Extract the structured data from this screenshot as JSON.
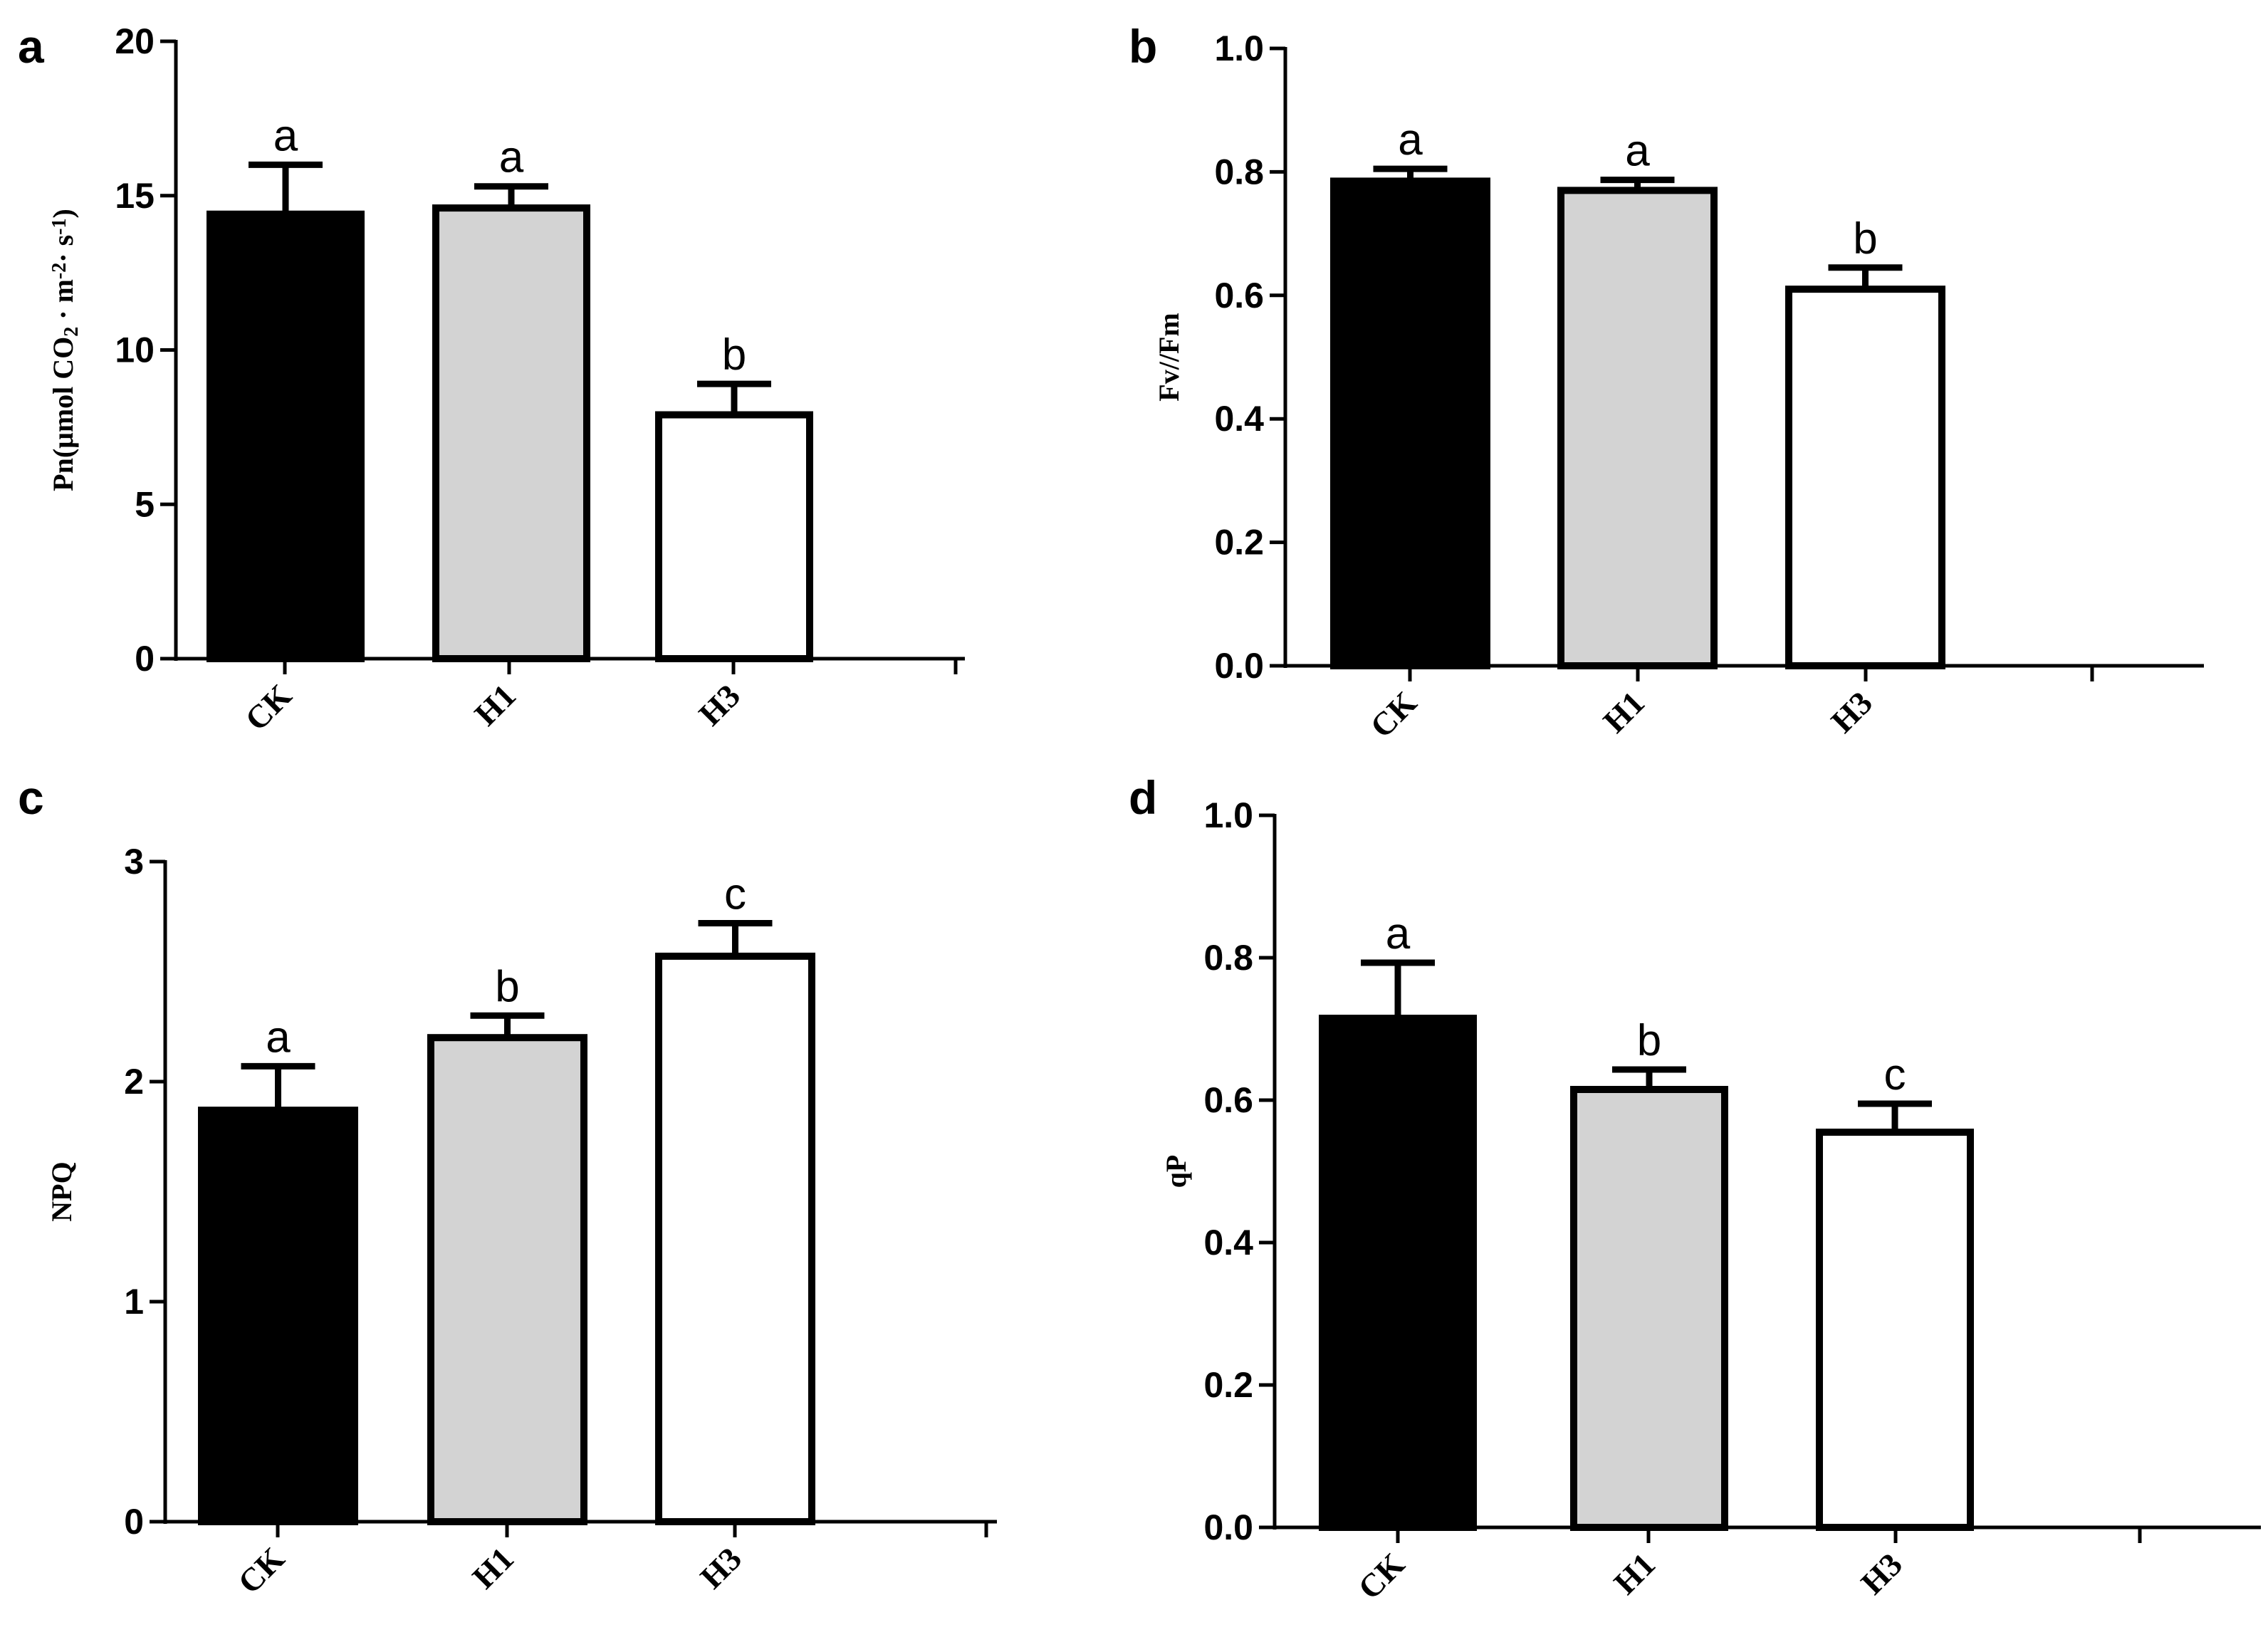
{
  "colors": {
    "CK": "#000000",
    "H1": "#d3d3d3",
    "H3": "#ffffff",
    "axis": "#000000"
  },
  "chart_data": [
    {
      "panel": "a",
      "type": "bar",
      "categories": [
        "CK",
        "H1",
        "H3"
      ],
      "values": [
        14.4,
        14.6,
        7.9
      ],
      "errors": [
        1.6,
        0.7,
        1.0
      ],
      "significance": [
        "a",
        "a",
        "b"
      ],
      "ylabel": "Pn(μmol CO2 · m-2· s-1)",
      "ylabel_parts": [
        "Pn(μmol CO",
        "2",
        " · m",
        "-2",
        "· s",
        "-1",
        ")"
      ],
      "ylim": [
        0,
        20
      ],
      "yticks": [
        "0",
        "5",
        "10",
        "15",
        "20"
      ],
      "ytick_values": [
        0,
        5,
        10,
        15,
        20
      ],
      "xlabel": ""
    },
    {
      "panel": "b",
      "type": "bar",
      "categories": [
        "CK",
        "H1",
        "H3"
      ],
      "values": [
        0.785,
        0.77,
        0.61
      ],
      "errors": [
        0.02,
        0.017,
        0.035
      ],
      "significance": [
        "a",
        "a",
        "b"
      ],
      "ylabel": "Fv//Fm",
      "ylim": [
        0,
        1.0
      ],
      "yticks": [
        "0.0",
        "0.2",
        "0.4",
        "0.6",
        "0.8",
        "1.0"
      ],
      "ytick_values": [
        0,
        0.2,
        0.4,
        0.6,
        0.8,
        1.0
      ],
      "xlabel": ""
    },
    {
      "panel": "c",
      "type": "bar",
      "categories": [
        "CK",
        "H1",
        "H3"
      ],
      "values": [
        1.87,
        2.2,
        2.57
      ],
      "errors": [
        0.2,
        0.1,
        0.15
      ],
      "significance": [
        "a",
        "b",
        "c"
      ],
      "ylabel": "NPQ",
      "ylim": [
        0,
        3
      ],
      "yticks": [
        "0",
        "1",
        "2",
        "3"
      ],
      "ytick_values": [
        0,
        1,
        2,
        3
      ],
      "xlabel": ""
    },
    {
      "panel": "d",
      "type": "bar",
      "categories": [
        "CK",
        "H1",
        "H3"
      ],
      "values": [
        0.715,
        0.615,
        0.555
      ],
      "errors": [
        0.078,
        0.028,
        0.04
      ],
      "significance": [
        "a",
        "b",
        "c"
      ],
      "ylabel": "qP",
      "ylim": [
        0,
        1.0
      ],
      "yticks": [
        "0.0",
        "0.2",
        "0.4",
        "0.6",
        "0.8",
        "1.0"
      ],
      "ytick_values": [
        0,
        0.2,
        0.4,
        0.6,
        0.8,
        1.0
      ],
      "xlabel": ""
    }
  ]
}
